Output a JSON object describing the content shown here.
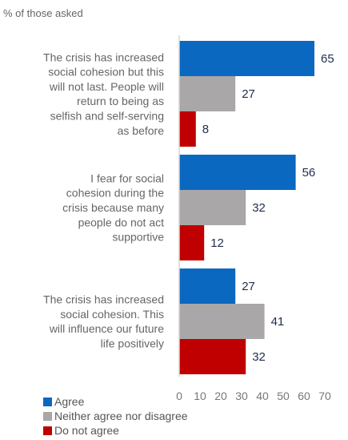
{
  "chart_data": {
    "type": "bar",
    "orientation": "horizontal",
    "subtitle": "% of those asked",
    "categories": [
      [
        "The crisis has increased",
        "social cohesion but this",
        "will not last. People will",
        "return to being as",
        "selfish and self-serving",
        "as before"
      ],
      [
        "I fear for social",
        "cohesion during the",
        "crisis because many",
        "people do not act",
        "supportive"
      ],
      [
        "The crisis has increased",
        "social cohesion. This",
        "will influence our future",
        "life positively"
      ]
    ],
    "series": [
      {
        "name": "Agree",
        "color": "#0a68c0",
        "values": [
          65,
          56,
          27
        ]
      },
      {
        "name": "Neither agree nor disagree",
        "color": "#a9a7a7",
        "values": [
          27,
          32,
          41
        ]
      },
      {
        "name": "Do not agree",
        "color": "#c00000",
        "values": [
          8,
          12,
          32
        ]
      }
    ],
    "xlim": [
      0,
      70
    ],
    "xticks": [
      0,
      10,
      20,
      30,
      40,
      50,
      60,
      70
    ],
    "grid": false,
    "legend_position": "bottom-left"
  }
}
